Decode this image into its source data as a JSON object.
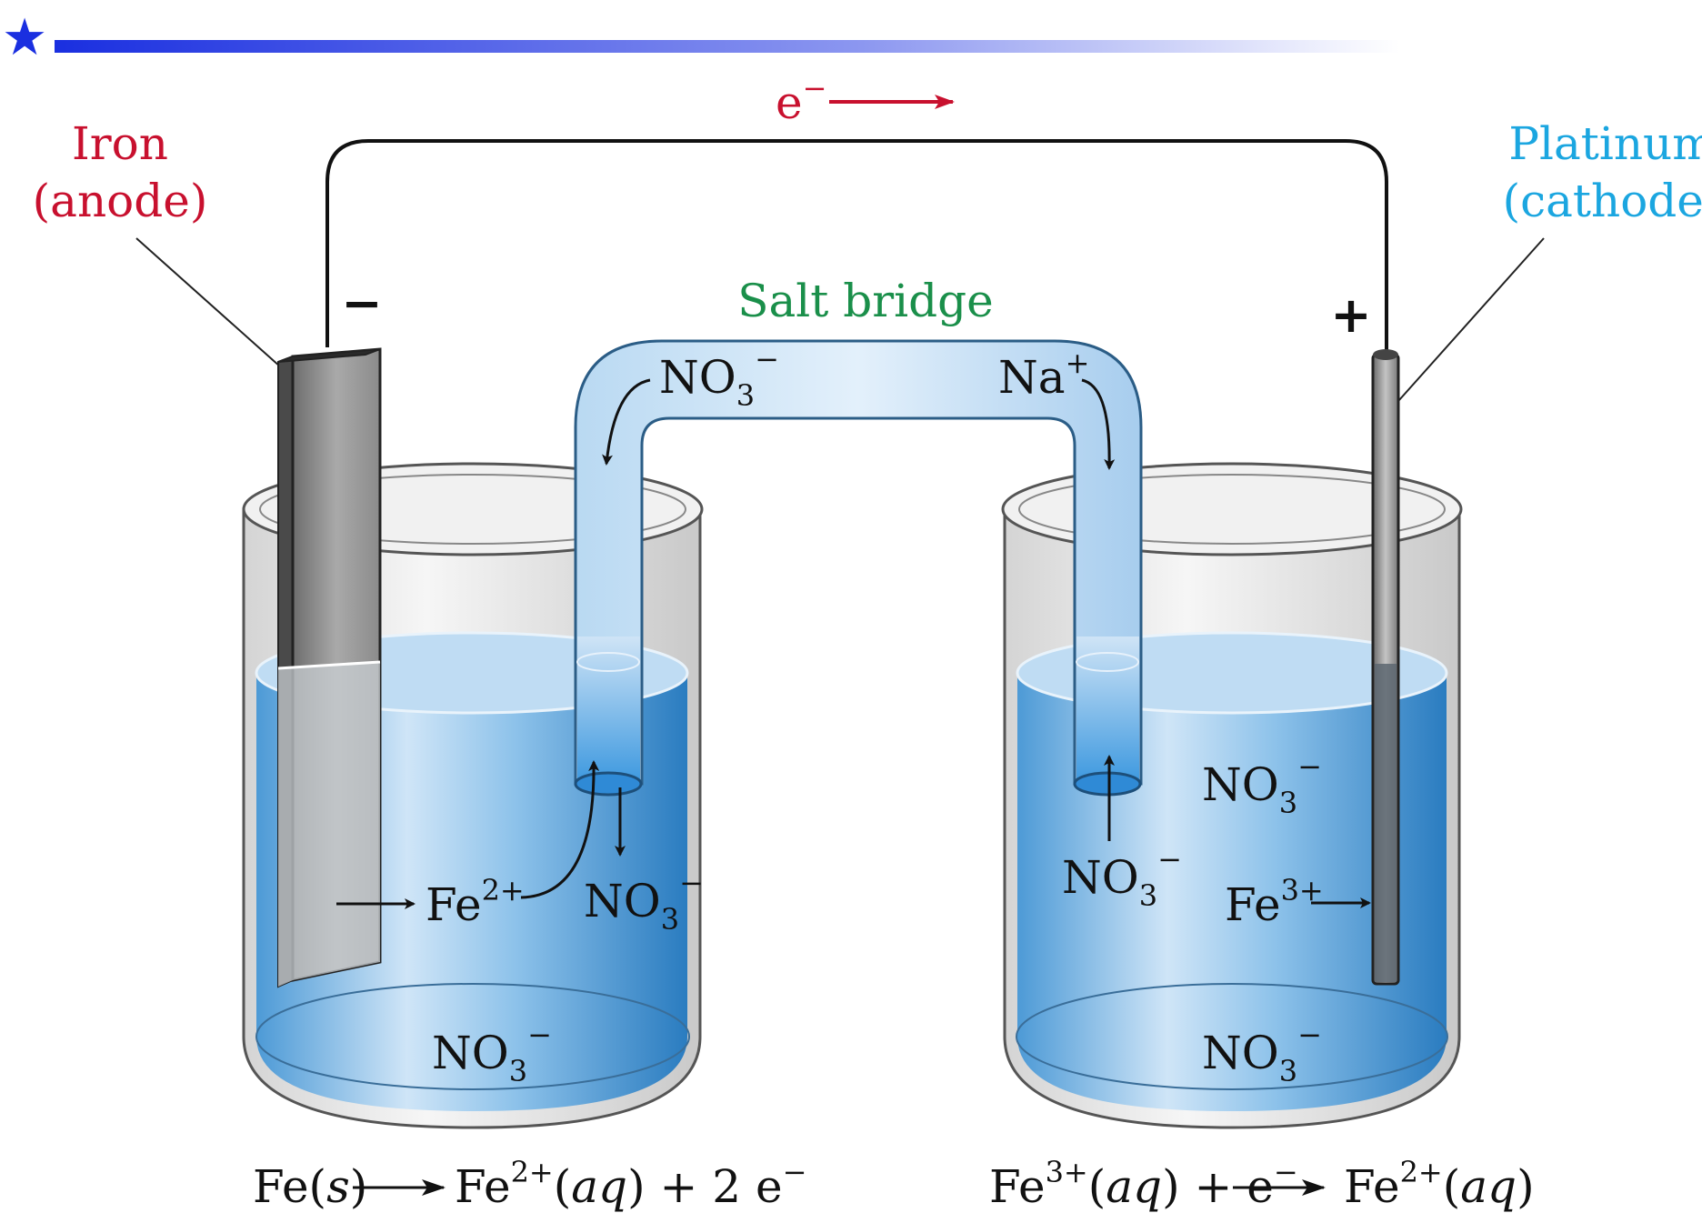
{
  "header_star": "★",
  "labels": {
    "anode_line1": "Iron",
    "anode_line2": "(anode)",
    "cathode_line1": "Platinum",
    "cathode_line2": "(cathode)",
    "salt_bridge": "Salt bridge",
    "electron": "e",
    "electron_charge": "−",
    "minus_sign": "−",
    "plus_sign": "+"
  },
  "ions": {
    "bridge_left": {
      "base": "NO",
      "sub": "3",
      "sup": "−"
    },
    "bridge_right": {
      "base": "Na",
      "sup": "+"
    },
    "anode_fe": {
      "base": "Fe",
      "sup": "2+"
    },
    "anode_no3_mid": {
      "base": "NO",
      "sub": "3",
      "sup": "−"
    },
    "anode_no3_bottom": {
      "base": "NO",
      "sub": "3",
      "sup": "−"
    },
    "cathode_no3_top": {
      "base": "NO",
      "sub": "3",
      "sup": "−"
    },
    "cathode_no3_mid": {
      "base": "NO",
      "sub": "3",
      "sup": "−"
    },
    "cathode_fe": {
      "base": "Fe",
      "sup": "3+"
    },
    "cathode_no3_bottom": {
      "base": "NO",
      "sub": "3",
      "sup": "−"
    }
  },
  "equations": {
    "anode": {
      "p1": "Fe(",
      "p2": "s",
      "p3": ")",
      "p4": "Fe",
      "p5": "2+",
      "p6": "(",
      "p7": "aq",
      "p8": ") + 2 e",
      "p9": "−"
    },
    "cathode": {
      "p1": "Fe",
      "p2": "3+",
      "p3": "(",
      "p4": "aq",
      "p5": ") + e",
      "p6": "−",
      "p7": "Fe",
      "p8": "2+",
      "p9": "(",
      "p10": "aq",
      "p11": ")"
    }
  },
  "colors": {
    "header_bar": "#1a2fe0",
    "anode_label": "#c8102e",
    "cathode_label": "#1ba6e0",
    "salt_bridge_label": "#1a8f4a",
    "electron_label": "#c8102e",
    "solution": "#3b8fd0"
  }
}
